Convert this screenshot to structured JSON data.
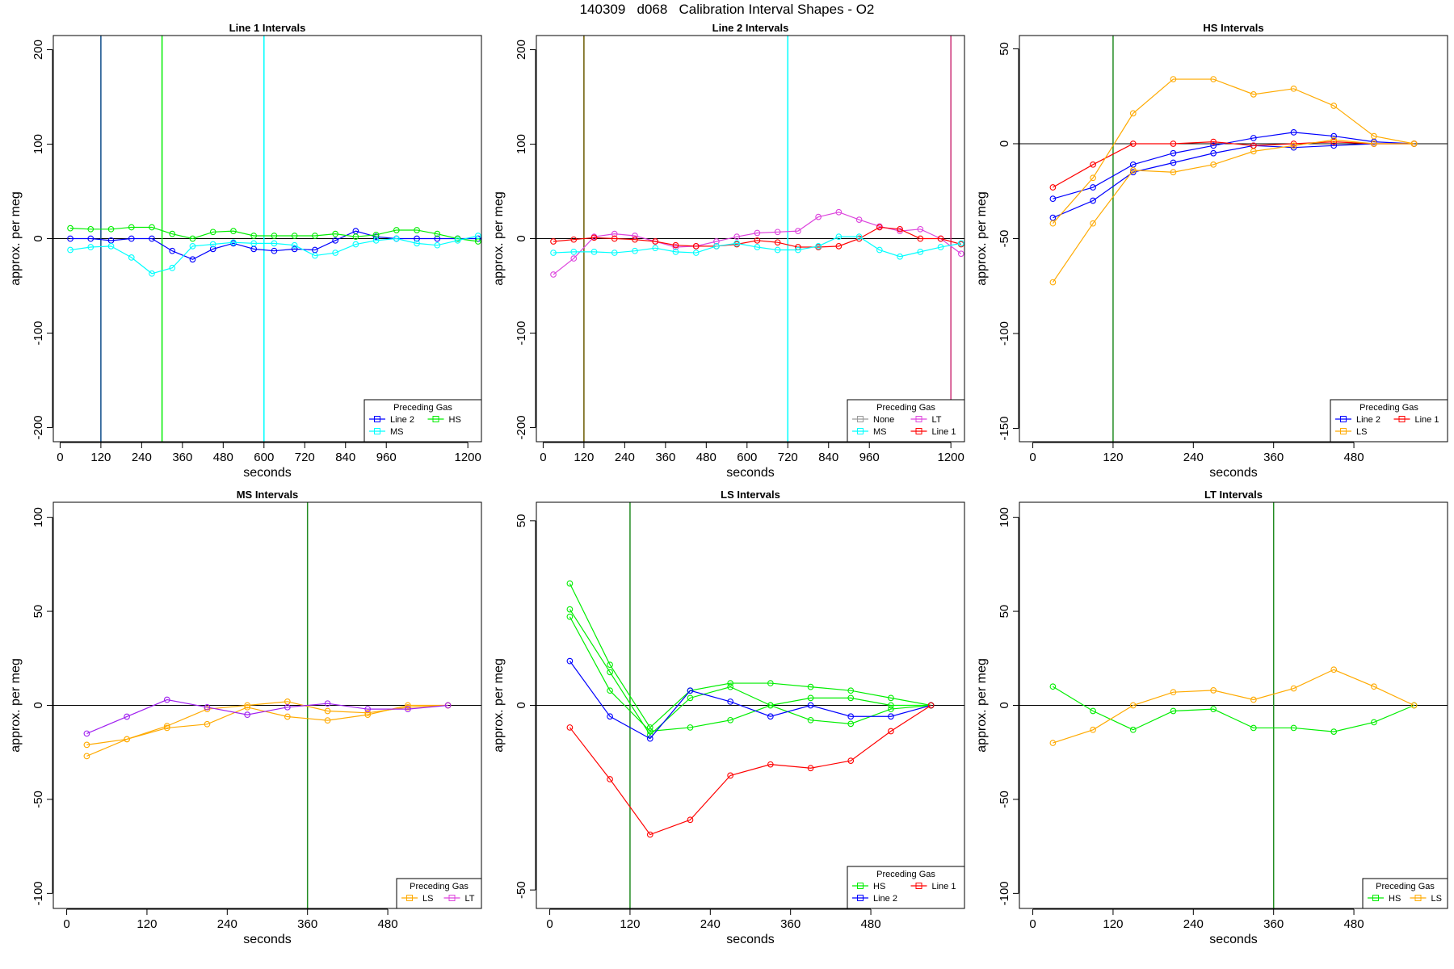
{
  "suptitle": "140309   d068   Calibration Interval Shapes - O2",
  "colors": {
    "Line 2": "#0000ff",
    "HS": "#00ee00",
    "MS": "#00ffff",
    "None": "#999999",
    "LT": "#dd44dd",
    "Line 1": "#ff0000",
    "LS": "#ffaa00",
    "axis": "#000000"
  },
  "chart_data": [
    {
      "type": "line",
      "title": "Line 1 Intervals",
      "xlabel": "seconds",
      "ylabel": "approx. per meg",
      "xlim": [
        -20,
        1240
      ],
      "ylim": [
        -215,
        215
      ],
      "xticks": [
        0,
        120,
        240,
        360,
        480,
        600,
        720,
        840,
        960,
        1200
      ],
      "yticks": [
        -200,
        -100,
        0,
        100,
        200
      ],
      "hline": 0,
      "vlines": [
        {
          "x": 120,
          "color": "#104e8b"
        },
        {
          "x": 300,
          "color": "#00ee00"
        },
        {
          "x": 600,
          "color": "#00ffff"
        }
      ],
      "legend": {
        "title": "Preceding Gas",
        "position": "bottom-right",
        "columns": 2,
        "entries": [
          "Line 2",
          "HS",
          "MS"
        ]
      },
      "series": [
        {
          "name": "Line 2",
          "color": "#0000ff",
          "x": [
            30,
            90,
            150,
            210,
            270,
            330,
            390,
            450,
            510,
            570,
            630,
            690,
            750,
            810,
            870,
            930,
            990,
            1050,
            1110,
            1170,
            1230
          ],
          "y": [
            0,
            0,
            -2,
            0,
            0,
            -13,
            -22,
            -11,
            -5,
            -11,
            -13,
            -11,
            -12,
            -2,
            8,
            2,
            0,
            0,
            0,
            0,
            0
          ]
        },
        {
          "name": "HS",
          "color": "#00ee00",
          "x": [
            30,
            90,
            150,
            210,
            270,
            330,
            390,
            450,
            510,
            570,
            630,
            690,
            750,
            810,
            870,
            930,
            990,
            1050,
            1110,
            1170,
            1230
          ],
          "y": [
            11,
            10,
            10,
            12,
            12,
            5,
            0,
            7,
            8,
            3,
            3,
            3,
            3,
            5,
            2,
            4,
            9,
            9,
            5,
            0,
            -3
          ]
        },
        {
          "name": "MS",
          "color": "#00ffff",
          "x": [
            30,
            90,
            150,
            210,
            270,
            330,
            390,
            450,
            510,
            570,
            630,
            690,
            750,
            810,
            870,
            930,
            990,
            1050,
            1110,
            1170,
            1230
          ],
          "y": [
            -12,
            -9,
            -8,
            -20,
            -37,
            -31,
            -8,
            -6,
            -4,
            -5,
            -5,
            -7,
            -18,
            -15,
            -6,
            -2,
            0,
            -5,
            -7,
            -2,
            3
          ]
        }
      ]
    },
    {
      "type": "line",
      "title": "Line 2 Intervals",
      "xlabel": "seconds",
      "ylabel": "approx. per meg",
      "xlim": [
        -20,
        1240
      ],
      "ylim": [
        -215,
        215
      ],
      "xticks": [
        0,
        120,
        240,
        360,
        480,
        600,
        720,
        840,
        960,
        1200
      ],
      "yticks": [
        -200,
        -100,
        0,
        100,
        200
      ],
      "hline": 0,
      "vlines": [
        {
          "x": 120,
          "color": "#6b5b00"
        },
        {
          "x": 720,
          "color": "#00ffff"
        },
        {
          "x": 1200,
          "color": "#cd3278"
        }
      ],
      "legend": {
        "title": "Preceding Gas",
        "position": "bottom-right",
        "columns": 2,
        "entries": [
          "None",
          "LT",
          "MS",
          "Line 1"
        ]
      },
      "series": [
        {
          "name": "LT",
          "color": "#dd44dd",
          "x": [
            30,
            90,
            150,
            210,
            270,
            330,
            390,
            450,
            510,
            570,
            630,
            690,
            750,
            810,
            870,
            930,
            990,
            1050,
            1110,
            1170,
            1230
          ],
          "y": [
            -38,
            -21,
            2,
            5,
            3,
            -3,
            -9,
            -8,
            -3,
            2,
            6,
            7,
            8,
            23,
            28,
            20,
            13,
            8,
            10,
            0,
            -16
          ]
        },
        {
          "name": "Line 1",
          "color": "#ff0000",
          "x": [
            30,
            90,
            150,
            210,
            270,
            330,
            390,
            450,
            510,
            570,
            630,
            690,
            750,
            810,
            870,
            930,
            990,
            1050,
            1110,
            1170,
            1230
          ],
          "y": [
            -3,
            -1,
            1,
            0,
            -1,
            -3,
            -7,
            -8,
            -8,
            -6,
            -2,
            -4,
            -9,
            -9,
            -8,
            0,
            12,
            10,
            0,
            0,
            -6
          ]
        },
        {
          "name": "MS",
          "color": "#00ffff",
          "x": [
            30,
            90,
            150,
            210,
            270,
            330,
            390,
            450,
            510,
            570,
            630,
            690,
            750,
            810,
            870,
            930,
            990,
            1050,
            1110,
            1170,
            1230
          ],
          "y": [
            -15,
            -14,
            -14,
            -15,
            -13,
            -10,
            -14,
            -15,
            -8,
            -5,
            -9,
            -12,
            -12,
            -8,
            2,
            2,
            -12,
            -19,
            -14,
            -9,
            -5
          ]
        }
      ]
    },
    {
      "type": "line",
      "title": "HS Intervals",
      "xlabel": "seconds",
      "ylabel": "approx. per meg",
      "xlim": [
        -20,
        620
      ],
      "ylim": [
        -157,
        57
      ],
      "xticks": [
        0,
        120,
        240,
        360,
        480
      ],
      "yticks": [
        -150,
        -100,
        -50,
        0,
        50
      ],
      "hline": 0,
      "vlines": [
        {
          "x": 120,
          "color": "#228b22"
        }
      ],
      "legend": {
        "title": "Preceding Gas",
        "position": "bottom-right",
        "columns": 2,
        "entries": [
          "Line 2",
          "Line 1",
          "LS"
        ]
      },
      "series": [
        {
          "name": "Line 2",
          "color": "#0000ff",
          "x": [
            30,
            90,
            150,
            210,
            270,
            330,
            390,
            450,
            510,
            570
          ],
          "y": [
            -29,
            -23,
            -11,
            -5,
            -1,
            3,
            6,
            4,
            1,
            0
          ]
        },
        {
          "name": "Line 2",
          "color": "#0000ff",
          "x": [
            30,
            90,
            150,
            210,
            270,
            330,
            390,
            450,
            510,
            570
          ],
          "y": [
            -39,
            -30,
            -15,
            -10,
            -5,
            -1,
            -2,
            -1,
            0,
            0
          ]
        },
        {
          "name": "Line 1",
          "color": "#ff0000",
          "x": [
            30,
            90,
            150,
            210,
            270,
            330,
            390,
            450,
            510,
            570
          ],
          "y": [
            -23,
            -11,
            0,
            0,
            1,
            -1,
            0,
            1,
            0,
            0
          ]
        },
        {
          "name": "LS",
          "color": "#ffaa00",
          "x": [
            30,
            90,
            150,
            210,
            270,
            330,
            390,
            450,
            510,
            570
          ],
          "y": [
            -42,
            -18,
            16,
            34,
            34,
            26,
            29,
            20,
            4,
            0
          ]
        },
        {
          "name": "LS",
          "color": "#ffaa00",
          "x": [
            30,
            90,
            150,
            210,
            270,
            330,
            390,
            450,
            510,
            570
          ],
          "y": [
            -73,
            -42,
            -14,
            -15,
            -11,
            -4,
            -1,
            2,
            0,
            0
          ]
        }
      ]
    },
    {
      "type": "line",
      "title": "MS Intervals",
      "xlabel": "seconds",
      "ylabel": "approx. per meg",
      "xlim": [
        -20,
        620
      ],
      "ylim": [
        -108,
        108
      ],
      "xticks": [
        0,
        120,
        240,
        360,
        480
      ],
      "yticks": [
        -100,
        -50,
        0,
        50,
        100
      ],
      "hline": 0,
      "vlines": [
        {
          "x": 360,
          "color": "#228b22"
        }
      ],
      "legend": {
        "title": "Preceding Gas",
        "position": "bottom-right",
        "columns": 2,
        "entries": [
          "LS",
          "LT"
        ]
      },
      "series": [
        {
          "name": "LS",
          "color": "#ffaa00",
          "x": [
            30,
            90,
            150,
            210,
            270,
            330,
            390,
            450,
            510,
            570
          ],
          "y": [
            -21,
            -18,
            -11,
            -2,
            0,
            2,
            -3,
            -4,
            -1,
            0
          ]
        },
        {
          "name": "LS",
          "color": "#ffaa00",
          "x": [
            30,
            90,
            150,
            210,
            270,
            330,
            390,
            450,
            510,
            570
          ],
          "y": [
            -27,
            -18,
            -12,
            -10,
            -1,
            -6,
            -8,
            -5,
            0,
            0
          ]
        },
        {
          "name": "LT",
          "color": "#a020f0",
          "x": [
            30,
            90,
            150,
            210,
            270,
            330,
            390,
            450,
            510,
            570
          ],
          "y": [
            -15,
            -6,
            3,
            -1,
            -5,
            -1,
            1,
            -2,
            -2,
            0
          ]
        }
      ]
    },
    {
      "type": "line",
      "title": "LS Intervals",
      "xlabel": "seconds",
      "ylabel": "approx. per meg",
      "xlim": [
        -20,
        620
      ],
      "ylim": [
        -55,
        55
      ],
      "xticks": [
        0,
        120,
        240,
        360,
        480
      ],
      "yticks": [
        -50,
        0,
        50
      ],
      "hline": 0,
      "vlines": [
        {
          "x": 120,
          "color": "#228b22"
        }
      ],
      "legend": {
        "title": "Preceding Gas",
        "position": "bottom-right",
        "columns": 2,
        "entries": [
          "HS",
          "Line 1",
          "Line 2"
        ]
      },
      "series": [
        {
          "name": "HS",
          "color": "#00ee00",
          "x": [
            30,
            90,
            150,
            210,
            270,
            330,
            390,
            450,
            510,
            570
          ],
          "y": [
            33,
            11,
            -6,
            4,
            6,
            6,
            5,
            4,
            2,
            0
          ]
        },
        {
          "name": "HS",
          "color": "#00ee00",
          "x": [
            30,
            90,
            150,
            210,
            270,
            330,
            390,
            450,
            510,
            570
          ],
          "y": [
            26,
            9,
            -8,
            2,
            5,
            0,
            2,
            2,
            0,
            0
          ]
        },
        {
          "name": "HS",
          "color": "#00ee00",
          "x": [
            30,
            90,
            150,
            210,
            270,
            330,
            390,
            450,
            510,
            570
          ],
          "y": [
            24,
            4,
            -7,
            -6,
            -4,
            0,
            -4,
            -5,
            -1,
            0
          ]
        },
        {
          "name": "Line 2",
          "color": "#0000ff",
          "x": [
            30,
            90,
            150,
            210,
            270,
            330,
            390,
            450,
            510,
            570
          ],
          "y": [
            12,
            -3,
            -9,
            4,
            1,
            -3,
            0,
            -3,
            -3,
            0
          ]
        },
        {
          "name": "Line 1",
          "color": "#ff0000",
          "x": [
            30,
            90,
            150,
            210,
            270,
            330,
            390,
            450,
            510,
            570
          ],
          "y": [
            -6,
            -20,
            -35,
            -31,
            -19,
            -16,
            -17,
            -15,
            -7,
            0
          ]
        }
      ]
    },
    {
      "type": "line",
      "title": "LT Intervals",
      "xlabel": "seconds",
      "ylabel": "approx. per meg",
      "xlim": [
        -20,
        620
      ],
      "ylim": [
        -108,
        108
      ],
      "xticks": [
        0,
        120,
        240,
        360,
        480
      ],
      "yticks": [
        -100,
        -50,
        0,
        50,
        100
      ],
      "hline": 0,
      "vlines": [
        {
          "x": 360,
          "color": "#228b22"
        }
      ],
      "legend": {
        "title": "Preceding Gas",
        "position": "bottom-right",
        "columns": 2,
        "entries": [
          "HS",
          "LS"
        ]
      },
      "series": [
        {
          "name": "HS",
          "color": "#00ee00",
          "x": [
            30,
            90,
            150,
            210,
            270,
            330,
            390,
            450,
            510,
            570
          ],
          "y": [
            10,
            -3,
            -13,
            -3,
            -2,
            -12,
            -12,
            -14,
            -9,
            0
          ]
        },
        {
          "name": "LS",
          "color": "#ffaa00",
          "x": [
            30,
            90,
            150,
            210,
            270,
            330,
            390,
            450,
            510,
            570
          ],
          "y": [
            -20,
            -13,
            0,
            7,
            8,
            3,
            9,
            19,
            10,
            0
          ]
        }
      ]
    }
  ]
}
